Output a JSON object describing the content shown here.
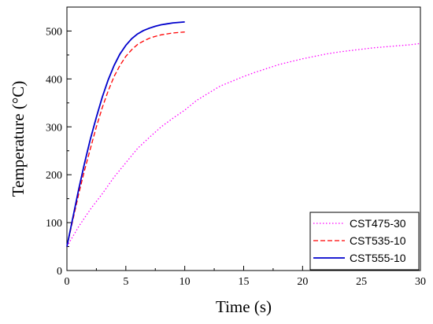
{
  "chart_data": {
    "type": "line",
    "title": "",
    "xlabel": "Time (s)",
    "ylabel": "Temperature  (°C)",
    "xlim": [
      0,
      30
    ],
    "ylim": [
      0,
      550
    ],
    "xticks": [
      0,
      5,
      10,
      15,
      20,
      25,
      30
    ],
    "yticks": [
      0,
      100,
      200,
      300,
      400,
      500
    ],
    "grid": false,
    "legend_position": "bottom-right",
    "series": [
      {
        "name": "CST475-30",
        "color": "#ff00ff",
        "style": "dotted",
        "x": [
          0,
          1,
          2,
          3,
          4,
          5,
          6,
          7,
          8,
          9,
          10,
          11,
          12,
          13,
          14,
          15,
          16,
          17,
          18,
          19,
          20,
          21,
          22,
          23,
          24,
          25,
          26,
          27,
          28,
          29,
          30
        ],
        "y": [
          50,
          92,
          128,
          160,
          195,
          225,
          255,
          278,
          300,
          318,
          335,
          355,
          370,
          385,
          395,
          405,
          414,
          422,
          430,
          436,
          442,
          447,
          452,
          456,
          459,
          462,
          465,
          467,
          469,
          471,
          474
        ]
      },
      {
        "name": "CST535-10",
        "color": "#ff0000",
        "style": "dashed",
        "x": [
          0,
          0.5,
          1,
          1.5,
          2,
          2.5,
          3,
          3.5,
          4,
          4.5,
          5,
          5.5,
          6,
          6.5,
          7,
          7.5,
          8,
          8.5,
          9,
          9.5,
          10
        ],
        "y": [
          50,
          105,
          160,
          210,
          255,
          300,
          340,
          375,
          405,
          428,
          447,
          461,
          472,
          479,
          485,
          489,
          492,
          494,
          496,
          497,
          498
        ]
      },
      {
        "name": "CST555-10",
        "color": "#0000cc",
        "style": "solid",
        "x": [
          0,
          0.5,
          1,
          1.5,
          2,
          2.5,
          3,
          3.5,
          4,
          4.5,
          5,
          5.5,
          6,
          6.5,
          7,
          7.5,
          8,
          8.5,
          9,
          9.5,
          10
        ],
        "y": [
          50,
          110,
          170,
          225,
          275,
          320,
          362,
          398,
          428,
          452,
          470,
          484,
          494,
          501,
          506,
          510,
          513,
          515,
          517,
          518,
          519
        ]
      }
    ]
  }
}
